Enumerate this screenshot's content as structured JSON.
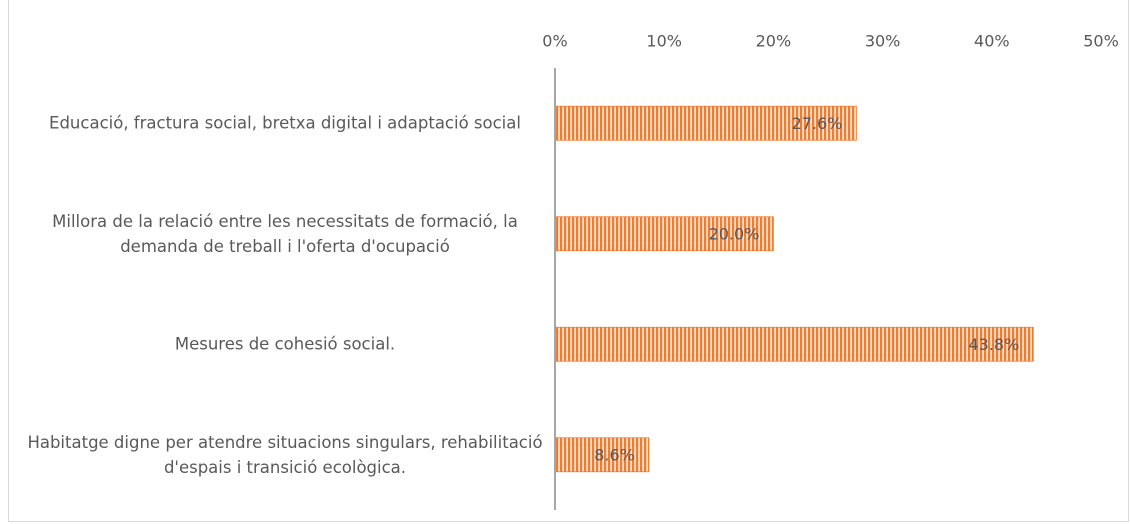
{
  "chart_data": {
    "type": "bar",
    "orientation": "horizontal",
    "categories": [
      "Educació, fractura social, bretxa digital i adaptació social",
      "Millora de la relació entre les necessitats de formació, la demanda de treball i l'oferta d'ocupació",
      "Mesures de cohesió social.",
      "Habitatge digne per atendre situacions singulars, rehabilitació d'espais i transició ecològica."
    ],
    "values": [
      27.6,
      20.0,
      43.8,
      8.6
    ],
    "value_labels": [
      "27.6%",
      "20.0%",
      "43.8%",
      "8.6%"
    ],
    "color": "#ed7d31",
    "xlim": [
      0,
      50
    ],
    "xticks": [
      {
        "value": 0,
        "label": "0%"
      },
      {
        "value": 10,
        "label": "10%"
      },
      {
        "value": 20,
        "label": "20%"
      },
      {
        "value": 30,
        "label": "30%"
      },
      {
        "value": 40,
        "label": "40%"
      },
      {
        "value": 50,
        "label": "50%"
      }
    ],
    "grid": false
  }
}
